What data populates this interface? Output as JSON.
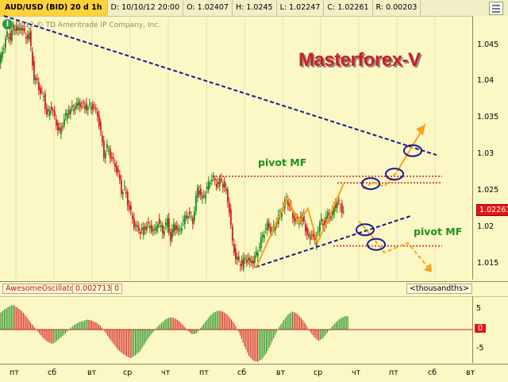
{
  "header": {
    "symbol": "AUD/USD (BID) 20 d 1h",
    "date": "D: 10/10/12 20:00",
    "open": "O: 1.02407",
    "high": "H: 1.0245",
    "low": "L: 1.02247",
    "close": "C: 1.02261",
    "range": "R: 0.00203"
  },
  "info_icon": "i",
  "copyright": "2012 © TD Ameritrade IP Company, Inc.",
  "brand": "Masterforex-V",
  "pivot_upper_label": "pivot MF",
  "pivot_lower_label": "pivot MF",
  "price_axis": [
    "1.045",
    "1.04",
    "1.035",
    "1.03",
    "1.025",
    "1.02",
    "1.015"
  ],
  "current_price": "1.02261",
  "oscillator": {
    "name": "AwesomeOscillator",
    "value": "0.0027135",
    "zero": "0",
    "units": "<thousandths>",
    "axis": [
      "5",
      "-5"
    ],
    "badge": "0"
  },
  "x_axis": [
    "пт",
    "сб",
    "вт",
    "ср",
    "чт",
    "пт",
    "сб",
    "вт",
    "ср",
    "чт",
    "пт",
    "сб",
    "вт"
  ],
  "colors": {
    "up": "#1b8a1b",
    "down": "#d51a1a",
    "trend": "#1a1a8c",
    "pivot": "#d41c1c",
    "projection": "#f4a51c"
  },
  "chart_data": {
    "type": "candlestick",
    "title": "AUD/USD (BID) 20 d 1h",
    "ylim": [
      1.0135,
      1.0495
    ],
    "price_path": [
      [
        0,
        1.043
      ],
      [
        6,
        1.0455
      ],
      [
        10,
        1.047
      ],
      [
        14,
        1.0465
      ],
      [
        18,
        1.048
      ],
      [
        24,
        1.0475
      ],
      [
        28,
        1.048
      ],
      [
        34,
        1.0465
      ],
      [
        38,
        1.047
      ],
      [
        44,
        1.041
      ],
      [
        48,
        1.0405
      ],
      [
        52,
        1.039
      ],
      [
        56,
        1.0385
      ],
      [
        60,
        1.036
      ],
      [
        66,
        1.037
      ],
      [
        70,
        1.0355
      ],
      [
        76,
        1.0335
      ],
      [
        82,
        1.0355
      ],
      [
        88,
        1.0365
      ],
      [
        94,
        1.037
      ],
      [
        100,
        1.0375
      ],
      [
        106,
        1.0372
      ],
      [
        112,
        1.037
      ],
      [
        118,
        1.0372
      ],
      [
        124,
        1.036
      ],
      [
        128,
        1.0335
      ],
      [
        132,
        1.0305
      ],
      [
        136,
        1.0315
      ],
      [
        140,
        1.0305
      ],
      [
        146,
        1.029
      ],
      [
        150,
        1.028
      ],
      [
        154,
        1.0255
      ],
      [
        158,
        1.026
      ],
      [
        162,
        1.024
      ],
      [
        166,
        1.0225
      ],
      [
        170,
        1.021
      ],
      [
        174,
        1.0205
      ],
      [
        180,
        1.02
      ],
      [
        186,
        1.021
      ],
      [
        192,
        1.0205
      ],
      [
        196,
        1.02
      ],
      [
        200,
        1.0215
      ],
      [
        206,
        1.02
      ],
      [
        212,
        1.0215
      ],
      [
        216,
        1.019
      ],
      [
        220,
        1.021
      ],
      [
        226,
        1.02
      ],
      [
        232,
        1.0215
      ],
      [
        238,
        1.0225
      ],
      [
        244,
        1.0215
      ],
      [
        250,
        1.026
      ],
      [
        256,
        1.0245
      ],
      [
        262,
        1.026
      ],
      [
        268,
        1.0275
      ],
      [
        274,
        1.0265
      ],
      [
        280,
        1.027
      ],
      [
        286,
        1.0255
      ],
      [
        290,
        1.023
      ],
      [
        294,
        1.0185
      ],
      [
        298,
        1.0165
      ],
      [
        302,
        1.016
      ],
      [
        306,
        1.0155
      ],
      [
        310,
        1.0165
      ],
      [
        314,
        1.016
      ],
      [
        320,
        1.016
      ],
      [
        326,
        1.0175
      ],
      [
        332,
        1.0195
      ],
      [
        338,
        1.021
      ],
      [
        344,
        1.02
      ],
      [
        350,
        1.0215
      ],
      [
        356,
        1.023
      ],
      [
        362,
        1.0245
      ],
      [
        366,
        1.0235
      ],
      [
        370,
        1.022
      ],
      [
        376,
        1.0215
      ],
      [
        382,
        1.022
      ],
      [
        386,
        1.0205
      ],
      [
        390,
        1.019
      ],
      [
        394,
        1.02
      ],
      [
        398,
        1.0185
      ],
      [
        402,
        1.0205
      ],
      [
        406,
        1.0215
      ],
      [
        410,
        1.021
      ],
      [
        414,
        1.0225
      ],
      [
        418,
        1.022
      ],
      [
        422,
        1.0235
      ],
      [
        426,
        1.024
      ],
      [
        430,
        1.0235
      ],
      [
        434,
        1.0225
      ]
    ],
    "upper_trendline": [
      [
        5,
        1.0495
      ],
      [
        550,
        1.0305
      ]
    ],
    "lower_trendline": [
      [
        322,
        1.0152
      ],
      [
        518,
        1.0222
      ]
    ],
    "pivot_upper": [
      {
        "x1": 268,
        "x2": 557,
        "y": 1.0276
      },
      {
        "x1": 425,
        "x2": 557,
        "y": 1.0267
      }
    ],
    "pivot_lower": [
      {
        "x1": 420,
        "x2": 557,
        "y": 1.0181
      }
    ],
    "zigzag": [
      [
        323,
        1.0152
      ],
      [
        362,
        1.0247
      ],
      [
        376,
        1.0212
      ],
      [
        388,
        1.0232
      ],
      [
        400,
        1.0185
      ],
      [
        433,
        1.0266
      ]
    ],
    "projection_up": [
      [
        457,
        1.0259
      ],
      [
        470,
        1.0268
      ],
      [
        484,
        1.0262
      ],
      [
        500,
        1.0282
      ],
      [
        536,
        1.0347
      ]
    ],
    "projection_down": [
      [
        452,
        1.0215
      ],
      [
        470,
        1.0192
      ],
      [
        484,
        1.0172
      ],
      [
        514,
        1.0185
      ],
      [
        542,
        1.0148
      ]
    ],
    "circles": [
      [
        467,
        1.0266
      ],
      [
        497,
        1.0279
      ],
      [
        520,
        1.0311
      ],
      [
        460,
        1.0203
      ],
      [
        474,
        1.0183
      ]
    ],
    "oscillator_ylim": [
      -7,
      7
    ],
    "oscillator_values": [
      3.5,
      4.2,
      4.8,
      5.2,
      4.6,
      3.9,
      2.8,
      1.5,
      0.4,
      -0.8,
      -1.9,
      -2.6,
      -3.0,
      -2.4,
      -1.6,
      -0.8,
      0.2,
      1.0,
      1.5,
      1.8,
      2.1,
      1.9,
      1.5,
      0.8,
      -0.4,
      -1.8,
      -3.0,
      -4.2,
      -5.0,
      -5.6,
      -6.0,
      -5.4,
      -4.6,
      -3.2,
      -1.8,
      -0.6,
      0.5,
      1.4,
      2.2,
      2.6,
      2.4,
      1.8,
      0.9,
      -0.2,
      -1.0,
      -0.8,
      0.4,
      1.6,
      2.8,
      3.6,
      4.0,
      3.8,
      3.2,
      2.1,
      0.8,
      -1.2,
      -3.5,
      -5.5,
      -6.5,
      -6.8,
      -6.2,
      -5.0,
      -3.2,
      -1.2,
      0.6,
      2.0,
      3.2,
      3.8,
      3.4,
      2.4,
      1.2,
      -0.4,
      -1.6,
      -2.4,
      -1.8,
      -0.6,
      0.6,
      1.6,
      2.4,
      2.8
    ],
    "oscillator_x_range": [
      0,
      440
    ]
  }
}
